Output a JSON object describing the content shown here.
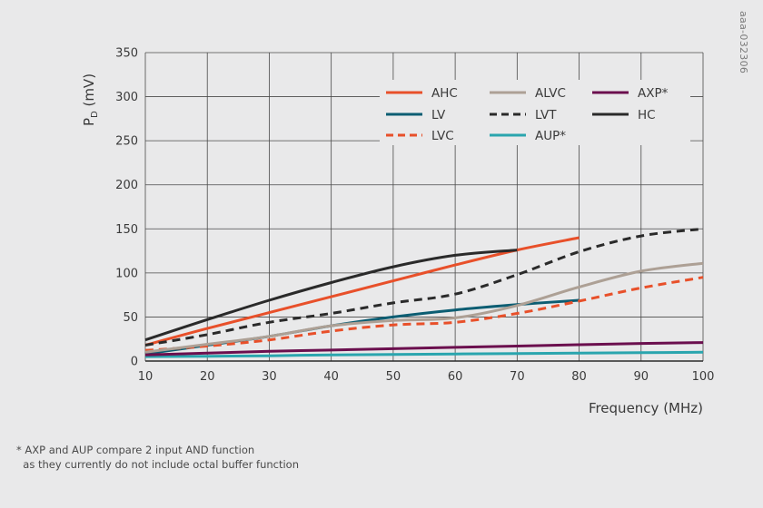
{
  "chart_data": {
    "type": "line",
    "xlabel": "Frequency (MHz)",
    "ylabel_main": "P",
    "ylabel_sub": "D",
    "ylabel_unit": " (mV)",
    "xlim": [
      10,
      100
    ],
    "ylim": [
      0,
      350
    ],
    "xticks": [
      10,
      20,
      30,
      40,
      50,
      60,
      70,
      80,
      90,
      100
    ],
    "yticks": [
      0,
      50,
      100,
      150,
      200,
      250,
      300,
      350
    ],
    "grid": true,
    "legend_position": "top-right",
    "series": [
      {
        "name": "AHC",
        "color": "#e8502a",
        "dash": "solid",
        "x": [
          10,
          20,
          30,
          40,
          50,
          60,
          70,
          80
        ],
        "y": [
          18,
          37,
          55,
          73,
          91,
          109,
          126,
          140
        ]
      },
      {
        "name": "LV",
        "color": "#0c5d72",
        "dash": "solid",
        "x": [
          10,
          20,
          30,
          40,
          50,
          60,
          70,
          80
        ],
        "y": [
          8,
          18,
          28,
          40,
          50,
          58,
          64,
          69
        ]
      },
      {
        "name": "LVC",
        "color": "#e8502a",
        "dash": "dashed",
        "x": [
          10,
          20,
          30,
          40,
          50,
          60,
          70,
          80,
          90,
          100
        ],
        "y": [
          12,
          17,
          24,
          34,
          41,
          44,
          54,
          68,
          83,
          95
        ]
      },
      {
        "name": "ALVC",
        "color": "#ada095",
        "dash": "solid",
        "x": [
          10,
          20,
          30,
          40,
          50,
          60,
          70,
          80,
          90,
          100
        ],
        "y": [
          10,
          19,
          28,
          40,
          46,
          49,
          63,
          84,
          102,
          111
        ]
      },
      {
        "name": "LVT",
        "color": "#2a2a2a",
        "dash": "dashed",
        "x": [
          10,
          20,
          30,
          40,
          50,
          60,
          70,
          80,
          90,
          100
        ],
        "y": [
          18,
          30,
          44,
          54,
          66,
          76,
          98,
          124,
          142,
          150
        ]
      },
      {
        "name": "AUP*",
        "color": "#2aa5ae",
        "dash": "solid",
        "x": [
          10,
          20,
          30,
          40,
          50,
          60,
          70,
          80,
          90,
          100
        ],
        "y": [
          5,
          5.5,
          6,
          7,
          7.5,
          8,
          8.5,
          9,
          9.5,
          10
        ]
      },
      {
        "name": "AXP*",
        "color": "#6b0f4e",
        "dash": "solid",
        "x": [
          10,
          20,
          30,
          40,
          50,
          60,
          70,
          80,
          90,
          100
        ],
        "y": [
          7,
          9,
          11,
          12.5,
          14,
          15.5,
          17,
          18.5,
          20,
          21
        ]
      },
      {
        "name": "HC",
        "color": "#2a2a2a",
        "dash": "solid",
        "x": [
          10,
          20,
          30,
          40,
          50,
          60,
          70
        ],
        "y": [
          24,
          47,
          69,
          89,
          107,
          120,
          126
        ]
      }
    ],
    "legend_order": [
      "AHC",
      "ALVC",
      "AXP*",
      "LV",
      "LVT",
      "HC",
      "LVC",
      "AUP*"
    ]
  },
  "footnote": {
    "line1": "* AXP and AUP compare 2 input AND function",
    "line2": "  as they currently do not include octal buffer function"
  },
  "side_code": "aaa-032306"
}
